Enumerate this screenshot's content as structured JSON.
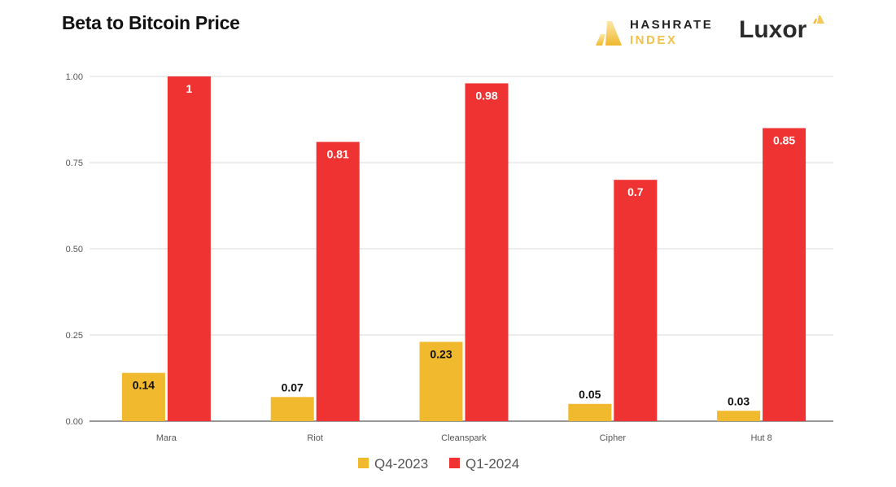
{
  "title": "Beta to Bitcoin Price",
  "logos": {
    "hashrate_index": [
      "HASHRATE",
      "INDEX"
    ],
    "luxor": "Luxor"
  },
  "colors": {
    "q4": "#f0b92e",
    "q1": "#ef3232",
    "grid": "#d9d9d9"
  },
  "chart_data": {
    "type": "bar",
    "title": "Beta to Bitcoin Price",
    "categories": [
      "Mara",
      "Riot",
      "Cleanspark",
      "Cipher",
      "Hut 8"
    ],
    "series": [
      {
        "name": "Q4-2023",
        "values": [
          0.14,
          0.07,
          0.23,
          0.05,
          0.03
        ],
        "labels": [
          "0.14",
          "0.07",
          "0.23",
          "0.05",
          "0.03"
        ]
      },
      {
        "name": "Q1-2024",
        "values": [
          1,
          0.81,
          0.98,
          0.7,
          0.85
        ],
        "labels": [
          "1",
          "0.81",
          "0.98",
          "0.7",
          "0.85"
        ]
      }
    ],
    "yticks": [
      "0.00",
      "0.25",
      "0.50",
      "0.75",
      "1.00"
    ],
    "ylim": [
      0,
      1
    ],
    "grid": true,
    "legend": "bottom"
  }
}
